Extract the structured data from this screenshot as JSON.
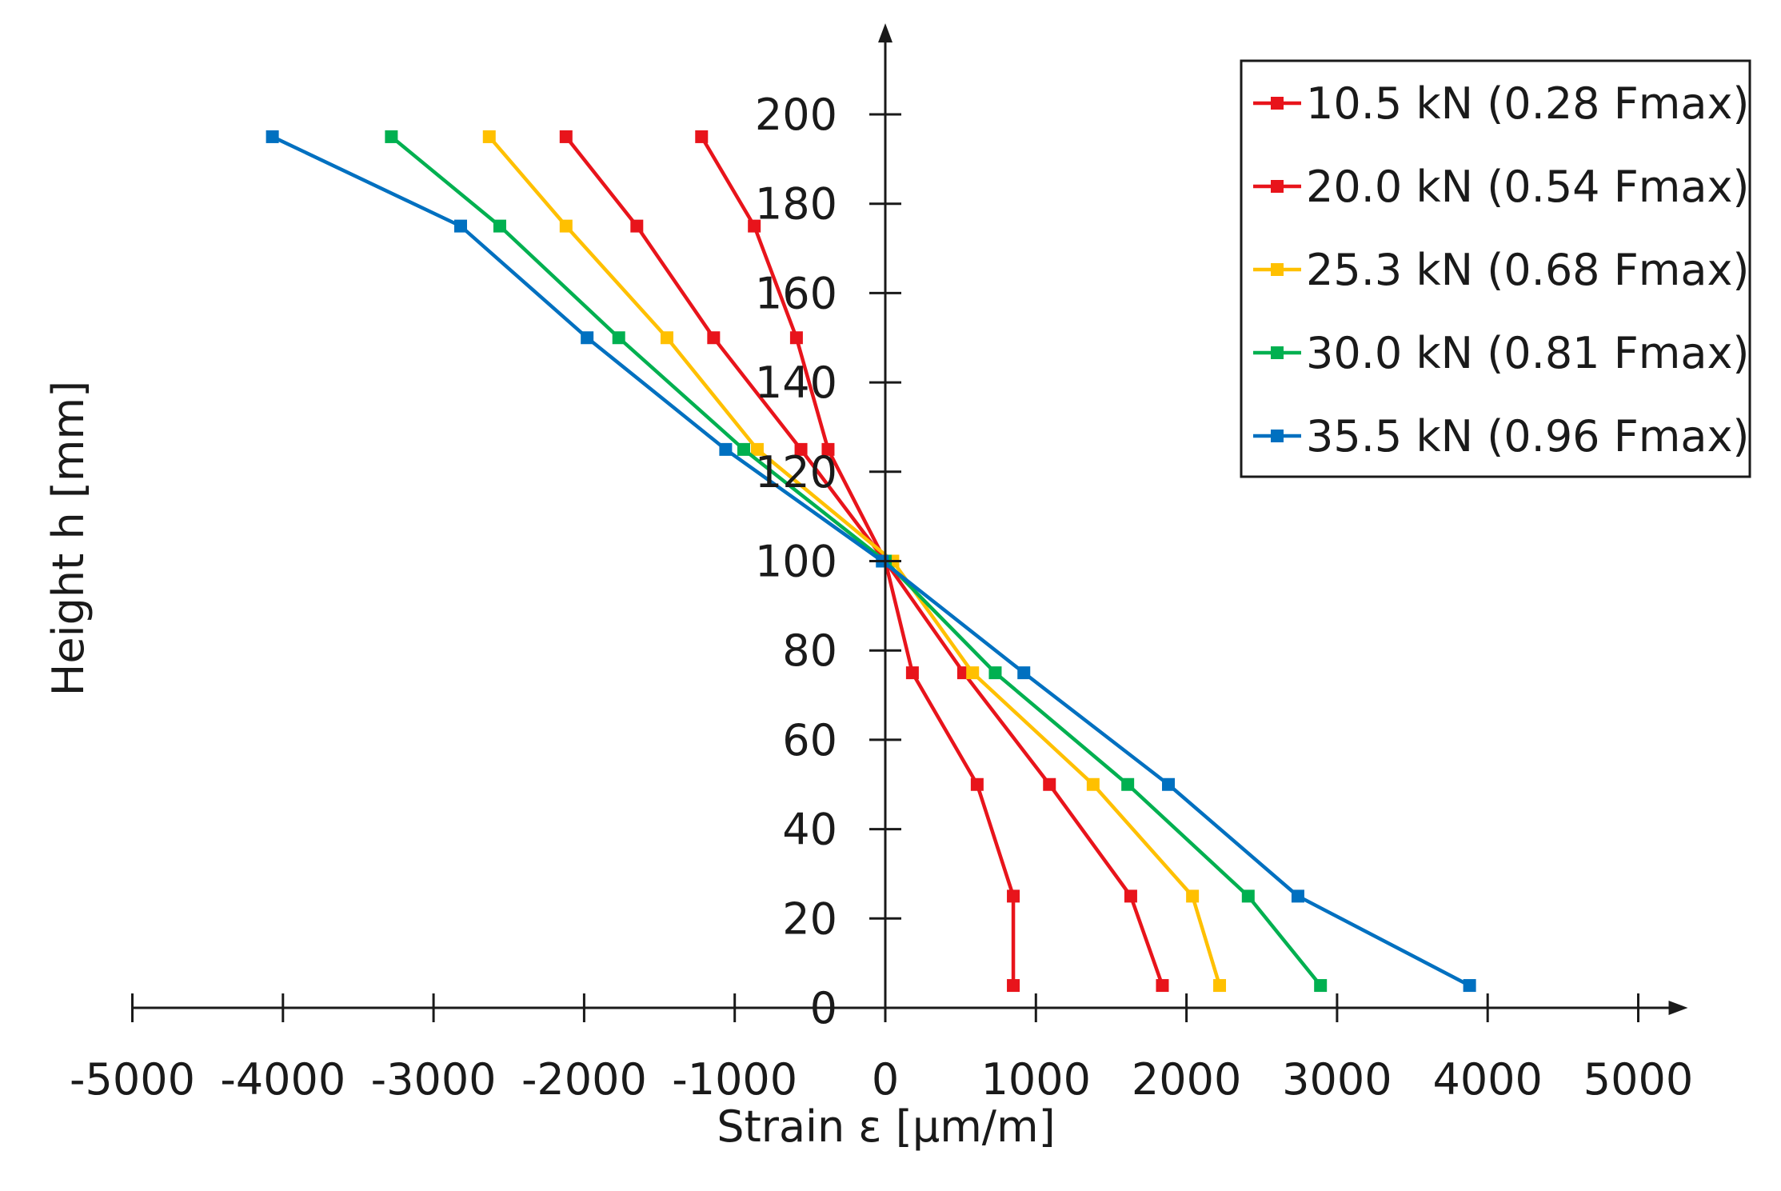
{
  "chart_data": {
    "type": "line",
    "title": "",
    "xlabel": "Strain ε [µm/m]",
    "ylabel": "Height h [mm]",
    "xlim": [
      -5000,
      5000
    ],
    "ylim": [
      0,
      210
    ],
    "xticks": [
      -5000,
      -4000,
      -3000,
      -2000,
      -1000,
      0,
      1000,
      2000,
      3000,
      4000,
      5000
    ],
    "xtick_labels": [
      "-5000",
      "-4000",
      "-3000",
      "-2000",
      "-1000",
      "0",
      "1000",
      "2000",
      "3000",
      "4000",
      "5000"
    ],
    "yticks": [
      0,
      20,
      40,
      60,
      80,
      100,
      120,
      140,
      160,
      180,
      200
    ],
    "ytick_labels": [
      "0",
      "20",
      "40",
      "60",
      "80",
      "100",
      "120",
      "140",
      "160",
      "180",
      "200"
    ],
    "grid": false,
    "legend_position": "top-right",
    "y_values": [
      195,
      175,
      150,
      125,
      100,
      75,
      50,
      25,
      5
    ],
    "series": [
      {
        "name": "10.5 kN (0.28 Fmax)",
        "color": "#e8141b",
        "x": [
          -1220,
          -870,
          -590,
          -380,
          0,
          180,
          610,
          850,
          850
        ]
      },
      {
        "name": "20.0 kN (0.54 Fmax)",
        "color": "#e8141b",
        "x": [
          -2120,
          -1650,
          -1140,
          -560,
          0,
          520,
          1090,
          1630,
          1840
        ]
      },
      {
        "name": "25.3 kN (0.68 Fmax)",
        "color": "#ffc000",
        "x": [
          -2630,
          -2120,
          -1450,
          -850,
          50,
          580,
          1380,
          2040,
          2220
        ]
      },
      {
        "name": "30.0 kN (0.81 Fmax)",
        "color": "#00b050",
        "x": [
          -3280,
          -2560,
          -1770,
          -940,
          0,
          730,
          1610,
          2410,
          2890
        ]
      },
      {
        "name": "35.5 kN (0.96 Fmax)",
        "color": "#0070c0",
        "x": [
          -4070,
          -2820,
          -1980,
          -1060,
          -20,
          920,
          1880,
          2740,
          3880
        ]
      }
    ]
  }
}
